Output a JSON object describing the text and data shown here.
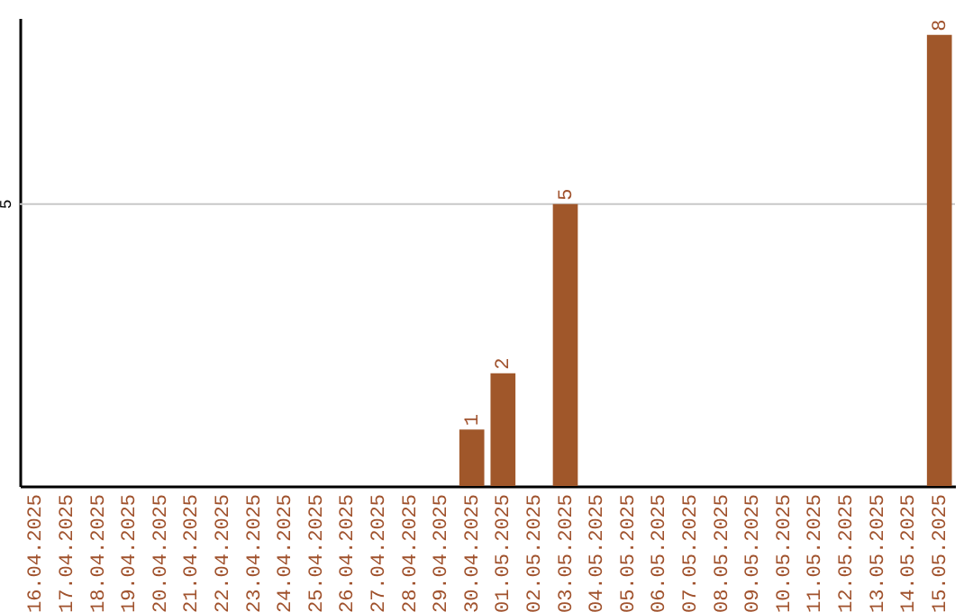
{
  "chart_data": {
    "type": "bar",
    "categories": [
      "16.04.2025",
      "17.04.2025",
      "18.04.2025",
      "19.04.2025",
      "20.04.2025",
      "21.04.2025",
      "22.04.2025",
      "23.04.2025",
      "24.04.2025",
      "25.04.2025",
      "26.04.2025",
      "27.04.2025",
      "28.04.2025",
      "29.04.2025",
      "30.04.2025",
      "01.05.2025",
      "02.05.2025",
      "03.05.2025",
      "04.05.2025",
      "05.05.2025",
      "06.05.2025",
      "07.05.2025",
      "08.05.2025",
      "09.05.2025",
      "10.05.2025",
      "11.05.2025",
      "12.05.2025",
      "13.05.2025",
      "14.05.2025",
      "15.05.2025"
    ],
    "values": [
      null,
      null,
      null,
      null,
      null,
      null,
      null,
      null,
      null,
      null,
      null,
      null,
      null,
      null,
      1,
      2,
      null,
      5,
      null,
      null,
      null,
      null,
      null,
      null,
      null,
      null,
      null,
      null,
      null,
      8
    ],
    "color": "#a0572a",
    "ylim": [
      0,
      8.3
    ],
    "data_labels": true,
    "ref_lines": [
      {
        "axis": "y",
        "value": 5,
        "label": "5",
        "color": "#c8c8c8"
      }
    ]
  }
}
